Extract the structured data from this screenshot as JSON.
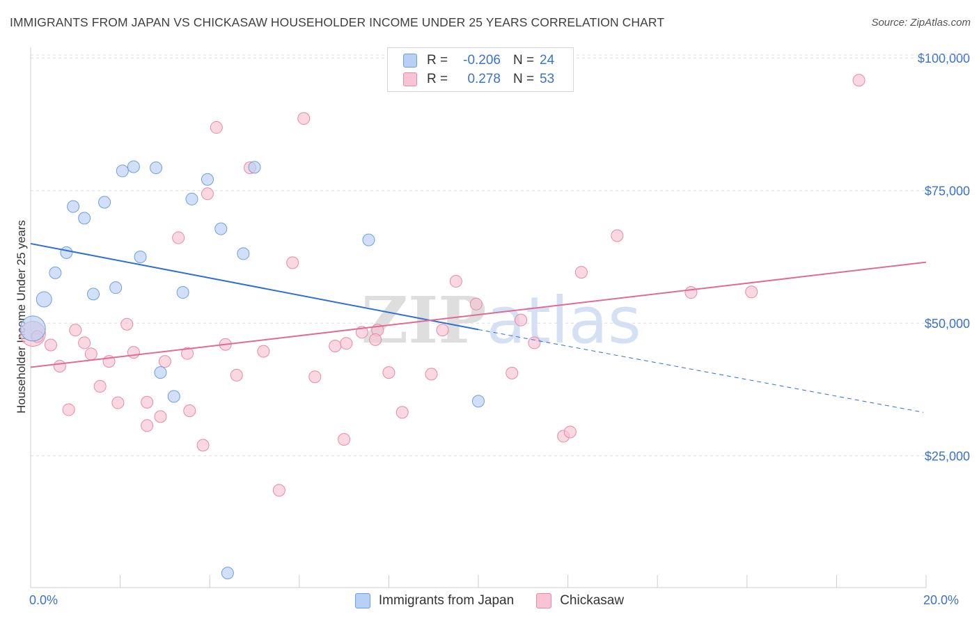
{
  "title": "IMMIGRANTS FROM JAPAN VS CHICKASAW HOUSEHOLDER INCOME UNDER 25 YEARS CORRELATION CHART",
  "source": "Source: ZipAtlas.com",
  "watermark": {
    "bold": "ZIP",
    "light": "atlas"
  },
  "colors": {
    "japan_fill": "#b8d0f5",
    "japan_stroke": "#6f9fe0",
    "japan_line": "#2e6fd0",
    "chickasaw_fill": "#f8c3d3",
    "chickasaw_stroke": "#e889a8",
    "chickasaw_line": "#e06b94",
    "axis_label": "#3b73c8",
    "grid": "#dddddd"
  },
  "legend": {
    "rows": [
      {
        "r_label": "R =",
        "r_value": "-0.206",
        "n_label": "N =",
        "n_value": "24"
      },
      {
        "r_label": "R =",
        "r_value": "0.278",
        "n_label": "N =",
        "n_value": "53"
      }
    ]
  },
  "bottom_legend": {
    "japan": "Immigrants from Japan",
    "chickasaw": "Chickasaw"
  },
  "chart_data": {
    "type": "scatter",
    "title": "IMMIGRANTS FROM JAPAN VS CHICKASAW HOUSEHOLDER INCOME UNDER 25 YEARS CORRELATION CHART",
    "xlabel": "",
    "ylabel": "Householder Income Under 25 years",
    "xlim": [
      0,
      20
    ],
    "ylim": [
      2000,
      102000
    ],
    "x_tick_labels": {
      "min": "0.0%",
      "max": "20.0%"
    },
    "y_ticks": [
      {
        "value": 25000,
        "label": "$25,000"
      },
      {
        "value": 50000,
        "label": "$50,000"
      },
      {
        "value": 75000,
        "label": "$75,000"
      },
      {
        "value": 100000,
        "label": "$100,000"
      }
    ],
    "grid": true,
    "legend_position": "top-center",
    "series": [
      {
        "name": "Immigrants from Japan",
        "r": -0.206,
        "n": 24,
        "points": [
          [
            0.05,
            49000,
            "large"
          ],
          [
            0.3,
            54500,
            "medium"
          ],
          [
            0.55,
            59500
          ],
          [
            0.8,
            63300
          ],
          [
            0.95,
            72000
          ],
          [
            1.2,
            69800
          ],
          [
            1.4,
            55500
          ],
          [
            1.65,
            72800
          ],
          [
            1.9,
            56700
          ],
          [
            2.05,
            78700
          ],
          [
            2.3,
            79500
          ],
          [
            2.45,
            62500
          ],
          [
            2.8,
            79300
          ],
          [
            2.9,
            40700
          ],
          [
            3.2,
            36200
          ],
          [
            3.4,
            55800
          ],
          [
            3.6,
            73400
          ],
          [
            3.95,
            77100
          ],
          [
            4.25,
            67800
          ],
          [
            4.75,
            63100
          ],
          [
            5.0,
            79400
          ],
          [
            7.55,
            65700
          ],
          [
            10.0,
            35300
          ],
          [
            4.4,
            2900
          ]
        ],
        "trend": {
          "x0": 0,
          "y0": 65000,
          "x1": 10.0,
          "y1": 48800,
          "dash_to_x": 20,
          "dash_to_y": 33200
        }
      },
      {
        "name": "Chickasaw",
        "r": 0.278,
        "n": 53,
        "points": [
          [
            0.05,
            48000,
            "large"
          ],
          [
            0.45,
            45900
          ],
          [
            0.65,
            41900
          ],
          [
            0.85,
            33700
          ],
          [
            1.0,
            48700
          ],
          [
            1.2,
            46300
          ],
          [
            1.35,
            44200
          ],
          [
            1.55,
            38100
          ],
          [
            1.75,
            42800
          ],
          [
            1.95,
            35000
          ],
          [
            2.15,
            49800
          ],
          [
            2.3,
            44500
          ],
          [
            2.6,
            35100
          ],
          [
            2.6,
            30700
          ],
          [
            2.9,
            32400
          ],
          [
            3.0,
            42800
          ],
          [
            3.3,
            66100
          ],
          [
            3.5,
            44300
          ],
          [
            3.55,
            33500
          ],
          [
            3.85,
            27000
          ],
          [
            3.95,
            74400
          ],
          [
            4.15,
            86900
          ],
          [
            4.35,
            46000
          ],
          [
            4.6,
            40200
          ],
          [
            4.9,
            79300
          ],
          [
            5.2,
            44700
          ],
          [
            5.55,
            18500
          ],
          [
            5.85,
            61400
          ],
          [
            6.1,
            88600
          ],
          [
            6.35,
            39900
          ],
          [
            6.8,
            45700
          ],
          [
            7.05,
            46200
          ],
          [
            7.0,
            28100
          ],
          [
            7.4,
            48300
          ],
          [
            7.75,
            48700
          ],
          [
            7.7,
            46900
          ],
          [
            8.0,
            40700
          ],
          [
            8.3,
            33200
          ],
          [
            8.95,
            40400
          ],
          [
            9.2,
            48700
          ],
          [
            9.5,
            57900
          ],
          [
            9.95,
            53600
          ],
          [
            10.75,
            40600
          ],
          [
            10.95,
            50600
          ],
          [
            11.25,
            46300
          ],
          [
            11.9,
            28700
          ],
          [
            12.05,
            29500
          ],
          [
            12.3,
            59600
          ],
          [
            13.1,
            66500
          ],
          [
            14.75,
            55800
          ],
          [
            16.1,
            55900
          ],
          [
            18.5,
            95800
          ],
          [
            0.15,
            47500
          ]
        ],
        "trend": {
          "x0": 0,
          "y0": 41700,
          "x1": 20,
          "y1": 61500
        }
      }
    ]
  }
}
